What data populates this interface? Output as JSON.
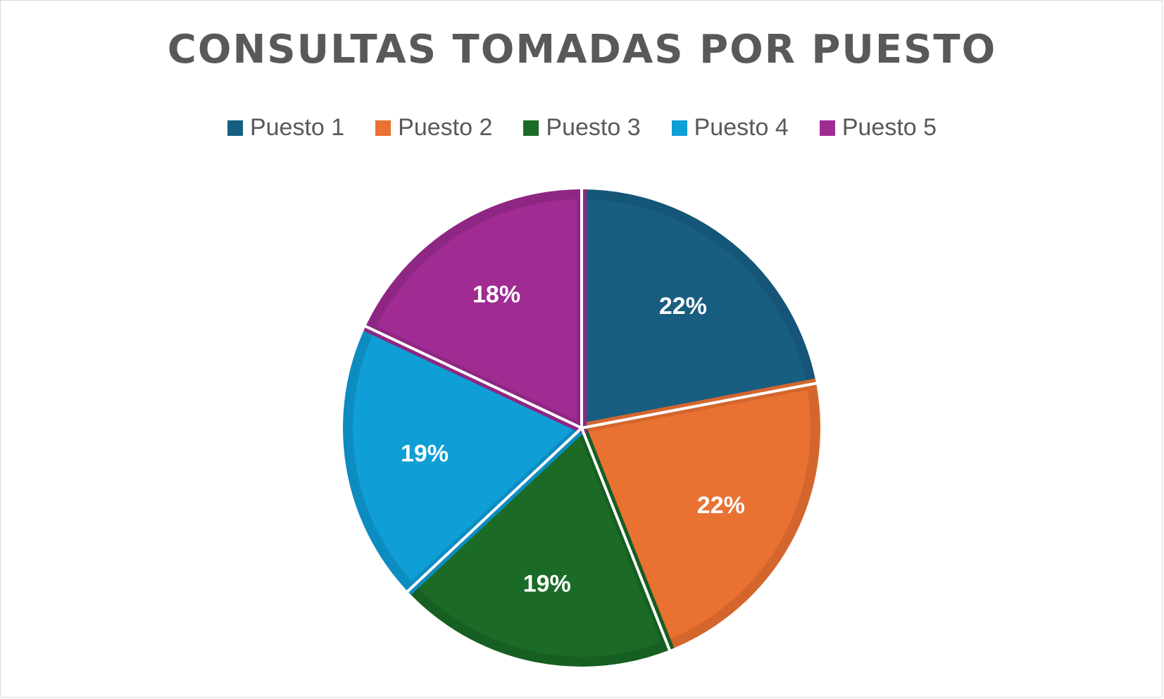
{
  "chart_data": {
    "type": "pie",
    "title": "CONSULTAS TOMADAS POR PUESTO",
    "legend_position": "top",
    "categories": [
      "Puesto 1",
      "Puesto 2",
      "Puesto 3",
      "Puesto 4",
      "Puesto 5"
    ],
    "values": [
      22,
      22,
      19,
      19,
      18
    ],
    "labels": [
      "22%",
      "22%",
      "19%",
      "19%",
      "18%"
    ],
    "colors": [
      "#185E80",
      "#E97132",
      "#1B6B27",
      "#0F9ED5",
      "#A02B93"
    ],
    "border_colors": [
      "#155577",
      "#D4662D",
      "#175E22",
      "#0C8CC0",
      "#8E2784"
    ]
  }
}
